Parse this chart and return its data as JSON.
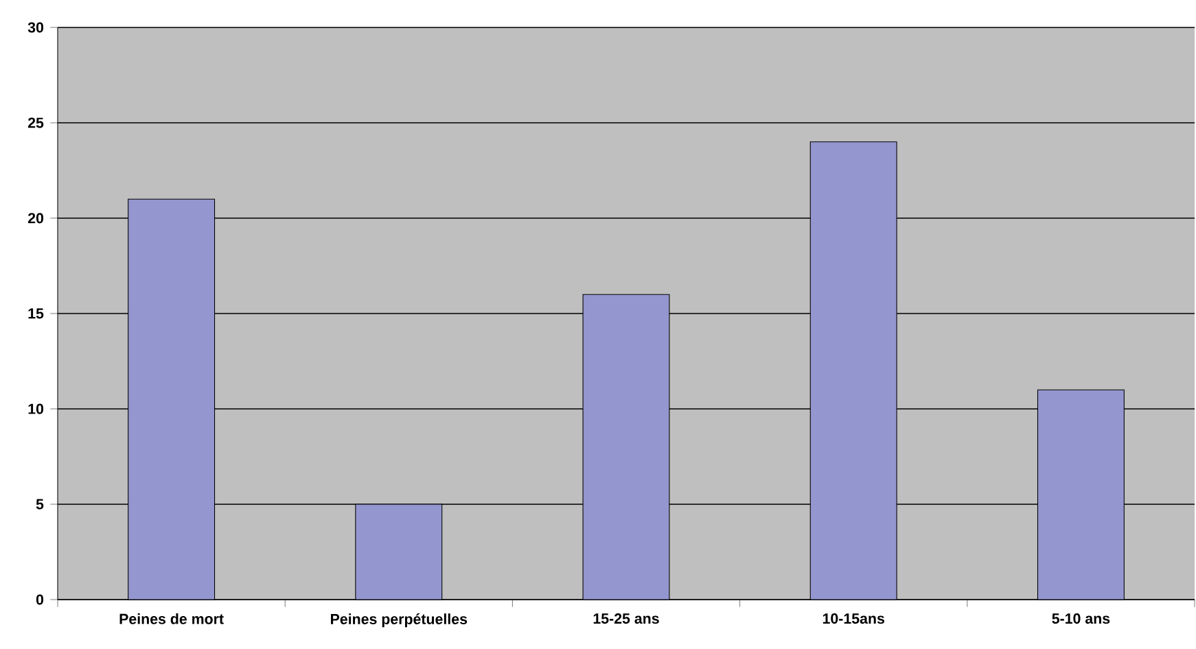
{
  "chart_data": {
    "type": "bar",
    "categories": [
      "Peines de mort",
      "Peines perpétuelles",
      "15-25 ans",
      "10-15ans",
      "5-10 ans"
    ],
    "values": [
      21,
      5,
      16,
      24,
      11
    ],
    "color": "#9496cf",
    "ylim": [
      0,
      30
    ],
    "yticks": [
      0,
      5,
      10,
      15,
      20,
      25,
      30
    ],
    "grid": "y"
  }
}
